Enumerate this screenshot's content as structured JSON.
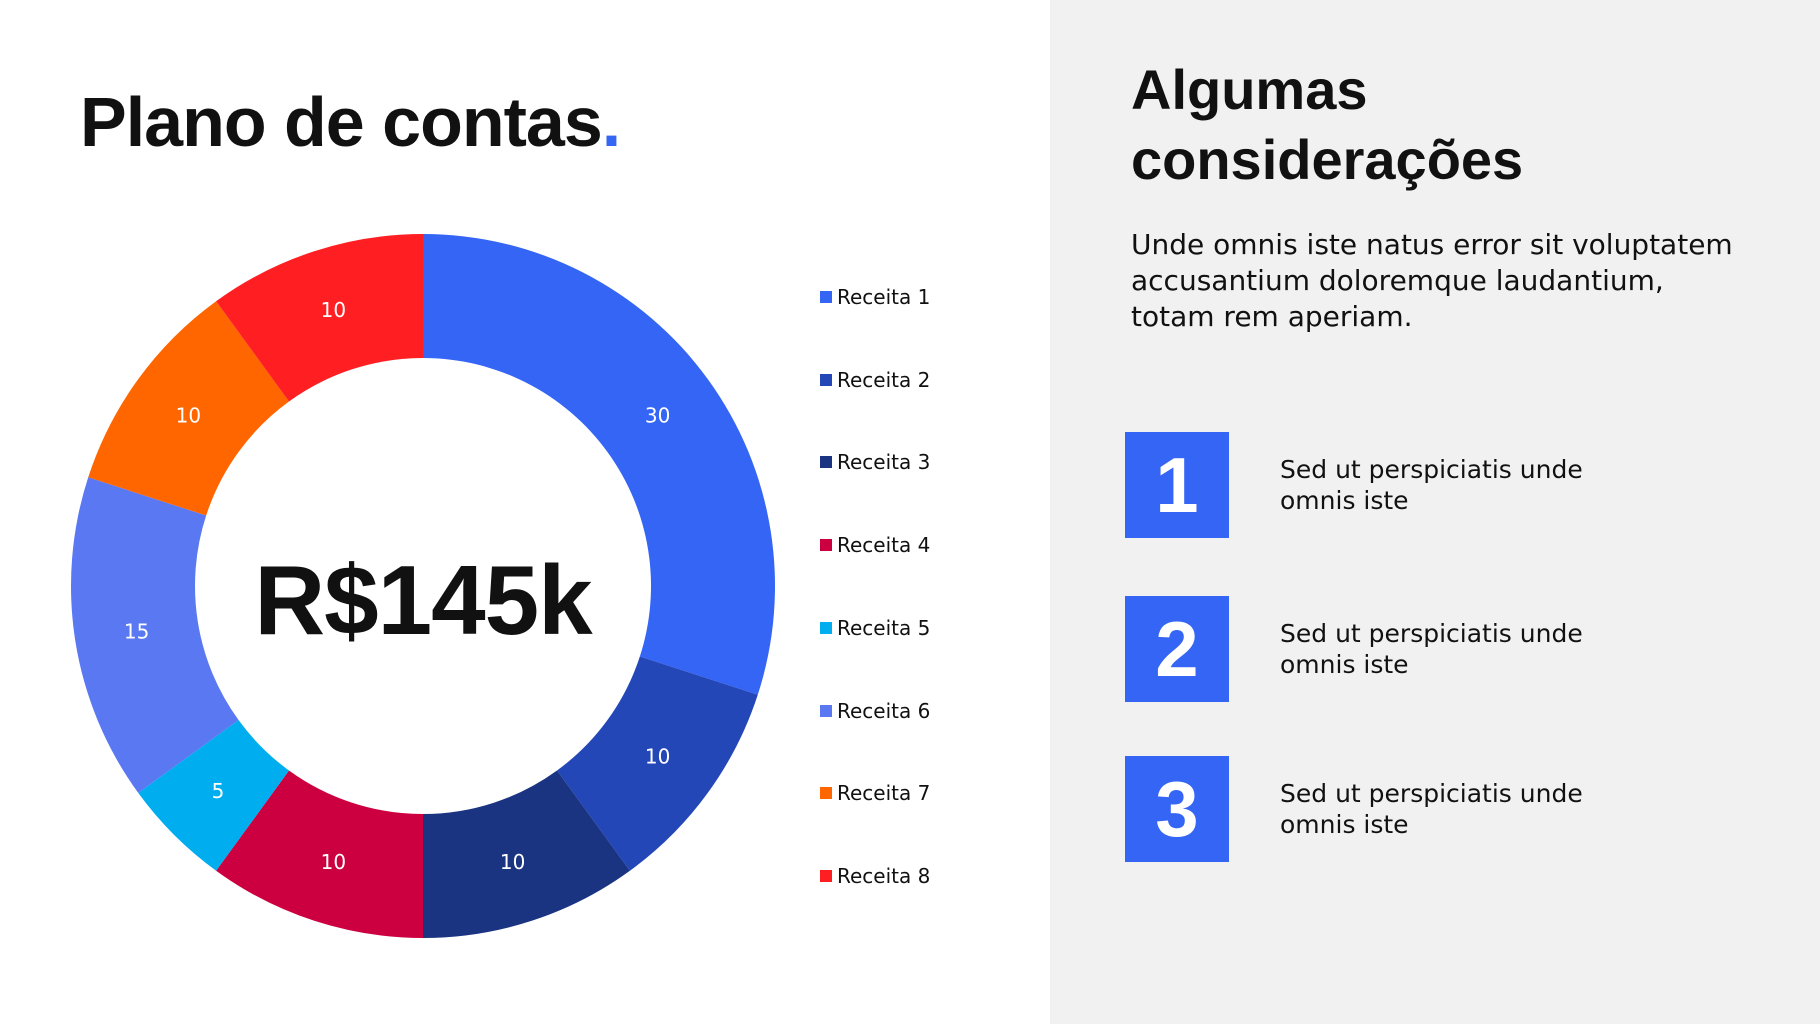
{
  "title": {
    "text": "Plano de contas",
    "dot": "."
  },
  "chart_data": {
    "type": "pie",
    "center_label": "R$145k",
    "categories": [
      "Receita 1",
      "Receita 2",
      "Receita 3",
      "Receita 4",
      "Receita 5",
      "Receita 6",
      "Receita 7",
      "Receita 8"
    ],
    "values": [
      30,
      10,
      10,
      10,
      5,
      15,
      10,
      10
    ],
    "colors": [
      "#3565f5",
      "#2447b8",
      "#1a3482",
      "#cc0041",
      "#00aeef",
      "#5a78f2",
      "#ff6600",
      "#ff1f23"
    ],
    "legend": "right"
  },
  "right": {
    "title": "Algumas considerações",
    "description": "Unde omnis iste natus error sit voluptatem accusantium doloremque laudantium, totam rem aperiam.",
    "items": [
      {
        "number": "1",
        "text": "Sed ut perspiciatis unde omnis iste"
      },
      {
        "number": "2",
        "text": "Sed ut perspiciatis unde omnis iste"
      },
      {
        "number": "3",
        "text": "Sed ut perspiciatis unde omnis iste"
      }
    ],
    "accent": "#3565f5"
  }
}
